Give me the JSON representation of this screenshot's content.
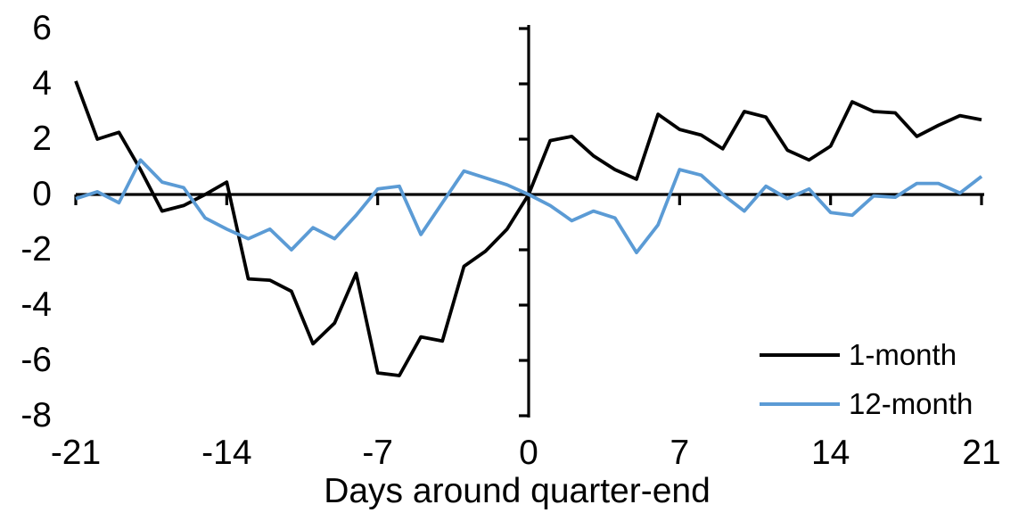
{
  "chart_data": {
    "type": "line",
    "title": "",
    "xlabel": "Days around quarter-end",
    "ylabel": "",
    "xlim": [
      -21,
      21
    ],
    "ylim": [
      -8,
      6
    ],
    "x_ticks": [
      -21,
      -14,
      -7,
      0,
      7,
      14,
      21
    ],
    "y_ticks": [
      6,
      4,
      2,
      0,
      -2,
      -4,
      -6,
      -8
    ],
    "grid": false,
    "legend_position": "inside-bottom-right",
    "axis_color": "#000000",
    "x": [
      -21,
      -20,
      -19,
      -18,
      -17,
      -16,
      -15,
      -14,
      -13,
      -12,
      -11,
      -10,
      -9,
      -8,
      -7,
      -6,
      -5,
      -4,
      -3,
      -2,
      -1,
      0,
      1,
      2,
      3,
      4,
      5,
      6,
      7,
      8,
      9,
      10,
      11,
      12,
      13,
      14,
      15,
      16,
      17,
      18,
      19,
      20,
      21
    ],
    "series": [
      {
        "name": "1-month",
        "color": "#000000",
        "values": [
          4.1,
          2.0,
          2.25,
          0.9,
          -0.6,
          -0.4,
          0.0,
          0.45,
          -3.05,
          -3.1,
          -3.5,
          -5.4,
          -4.65,
          -2.85,
          -6.45,
          -6.55,
          -5.15,
          -5.3,
          -2.6,
          -2.05,
          -1.25,
          0.0,
          1.95,
          2.1,
          1.4,
          0.9,
          0.55,
          2.9,
          2.35,
          2.15,
          1.65,
          3.0,
          2.8,
          1.6,
          1.25,
          1.75,
          3.35,
          3.0,
          2.95,
          2.1,
          2.5,
          2.85,
          2.7
        ]
      },
      {
        "name": "12-month",
        "color": "#5B9BD5",
        "values": [
          -0.15,
          0.1,
          -0.3,
          1.25,
          0.45,
          0.25,
          -0.85,
          -1.25,
          -1.6,
          -1.25,
          -2.0,
          -1.2,
          -1.6,
          -0.75,
          0.2,
          0.3,
          -1.45,
          -0.3,
          0.85,
          0.6,
          0.35,
          0.0,
          -0.4,
          -0.95,
          -0.6,
          -0.85,
          -2.1,
          -1.1,
          0.9,
          0.7,
          0.0,
          -0.6,
          0.3,
          -0.15,
          0.2,
          -0.65,
          -0.75,
          -0.05,
          -0.1,
          0.4,
          0.4,
          0.05,
          0.65
        ]
      }
    ]
  }
}
